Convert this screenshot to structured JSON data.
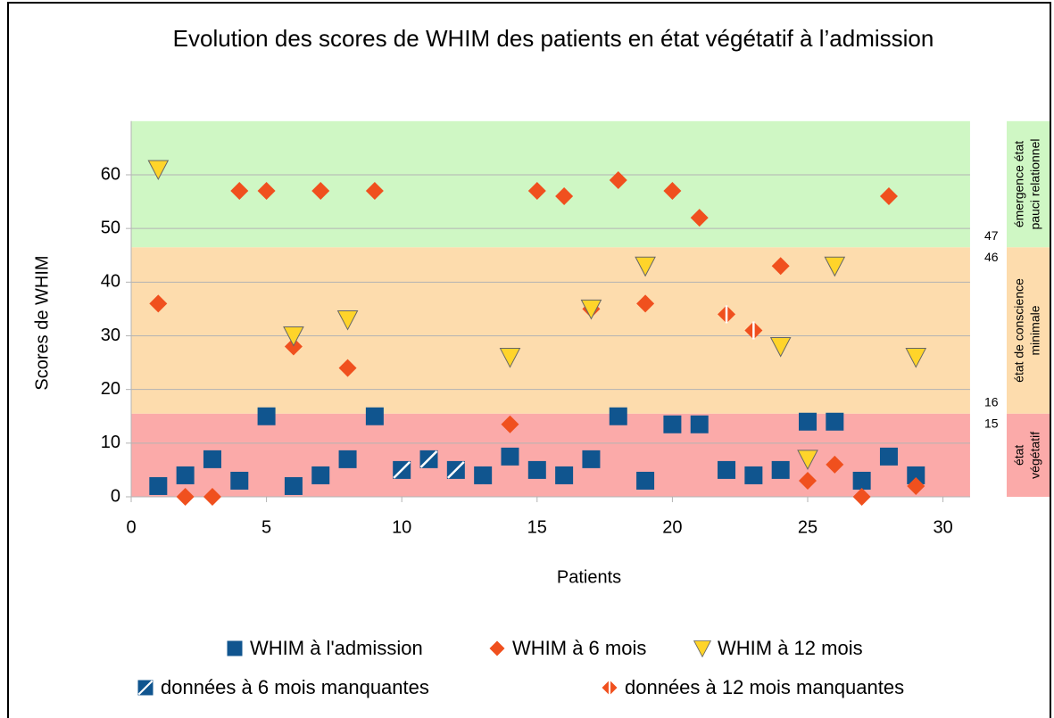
{
  "chart_data": {
    "type": "scatter",
    "title": "Evolution des scores de WHIM des patients en état végétatif à l’admission",
    "x_label": "Patients",
    "y_label": "Scores de WHIM",
    "xlim": [
      0,
      31
    ],
    "ylim": [
      0,
      70
    ],
    "xticks": [
      0,
      5,
      10,
      15,
      20,
      25,
      30
    ],
    "yticks": [
      0,
      10,
      20,
      30,
      40,
      50,
      60
    ],
    "grid": true,
    "legend": "bottom",
    "bands": [
      {
        "lines": [
          "état",
          "végétatif"
        ],
        "to": 15,
        "color": "#fbaaa9"
      },
      {
        "lines": [
          "état de conscience",
          "minimale"
        ],
        "from": 16,
        "to": 46,
        "color": "#fddcad"
      },
      {
        "lines": [
          "émergence état",
          "pauci relationnel"
        ],
        "from": 47,
        "color": "#cff7c4"
      }
    ],
    "series": [
      {
        "name": "WHIM à l'admission",
        "marker": "square",
        "color": "#10558f",
        "x": [
          1,
          2,
          3,
          4,
          5,
          6,
          7,
          8,
          9,
          13,
          14,
          15,
          16,
          17,
          18,
          19,
          20,
          21,
          22,
          23,
          24,
          25,
          26,
          27,
          28,
          29
        ],
        "values": [
          2,
          4,
          7,
          3,
          15,
          2,
          4,
          7,
          15,
          4,
          7.5,
          5,
          4,
          7,
          15,
          3,
          13.5,
          13.5,
          5,
          4,
          5,
          14,
          14,
          3,
          7.5,
          4
        ]
      },
      {
        "name": "WHIM à 6 mois",
        "marker": "diamond",
        "color": "#f0501e",
        "x": [
          1,
          2,
          3,
          4,
          5,
          6,
          7,
          8,
          9,
          14,
          15,
          16,
          17,
          18,
          19,
          20,
          21,
          24,
          25,
          26,
          27,
          28,
          29
        ],
        "values": [
          36,
          0,
          0,
          57,
          57,
          28,
          57,
          24,
          57,
          13.5,
          57,
          56,
          35,
          59,
          36,
          57,
          52,
          43,
          3,
          6,
          0,
          56,
          2
        ]
      },
      {
        "name": "WHIM à 12 mois",
        "marker": "triangle",
        "color": "#ffd42a",
        "x": [
          1,
          6,
          8,
          14,
          17,
          19,
          24,
          25,
          26,
          29
        ],
        "values": [
          61,
          30,
          33,
          26,
          35,
          43,
          28,
          7,
          43,
          26
        ]
      },
      {
        "name": "données à 6 mois manquantes",
        "marker": "square-hatched",
        "color": "#10558f",
        "x": [
          10,
          11,
          12
        ],
        "values": [
          5,
          7,
          5
        ]
      },
      {
        "name": "données à 12 mois manquantes",
        "marker": "diamond-split",
        "color": "#f0501e",
        "x": [
          13,
          22,
          23
        ],
        "values": [
          4,
          34,
          31
        ]
      }
    ]
  }
}
